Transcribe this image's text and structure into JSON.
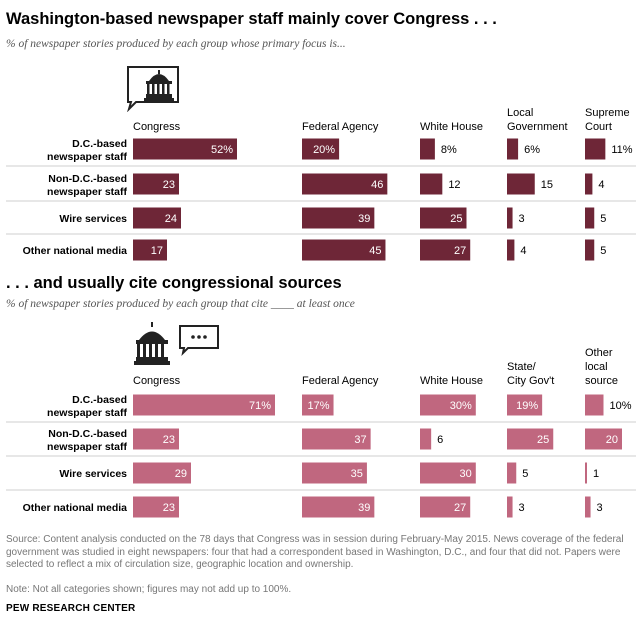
{
  "chart_data": [
    {
      "type": "bar",
      "title": "Washington-based  newspaper staff mainly cover Congress . . .",
      "subtitle": "% of newspaper stories produced by each group whose primary focus is...",
      "rows": [
        "D.C.-based newspaper staff",
        "Non-D.C.-based newspaper staff",
        "Wire services",
        "Other national media"
      ],
      "columns": [
        "Congress",
        "Federal Agency",
        "White House",
        "Local Government",
        "Supreme Court"
      ],
      "series": [
        {
          "name": "D.C.-based newspaper staff",
          "values": [
            52,
            20,
            8,
            6,
            11
          ],
          "labels": [
            "52%",
            "20%",
            "8%",
            "6%",
            "11%"
          ]
        },
        {
          "name": "Non-D.C.-based newspaper staff",
          "values": [
            23,
            46,
            12,
            15,
            4
          ],
          "labels": [
            "23",
            "46",
            "12",
            "15",
            "4"
          ]
        },
        {
          "name": "Wire services",
          "values": [
            24,
            39,
            25,
            3,
            5
          ],
          "labels": [
            "24",
            "39",
            "25",
            "3",
            "5"
          ]
        },
        {
          "name": "Other national media",
          "values": [
            17,
            45,
            27,
            4,
            5
          ],
          "labels": [
            "17",
            "45",
            "27",
            "4",
            "5"
          ]
        }
      ],
      "color": "#6e2637"
    },
    {
      "type": "bar",
      "title": ". . . and usually cite congressional sources",
      "subtitle": "% of newspaper stories produced by each group that cite ____ at least once",
      "rows": [
        "D.C.-based newspaper staff",
        "Non-D.C.-based newspaper staff",
        "Wire services",
        "Other national media"
      ],
      "columns": [
        "Congress",
        "Federal Agency",
        "White House",
        "State/ City Gov't",
        "Other local source"
      ],
      "series": [
        {
          "name": "D.C.-based newspaper staff",
          "values": [
            71,
            17,
            30,
            19,
            10
          ],
          "labels": [
            "71%",
            "17%",
            "30%",
            "19%",
            "10%"
          ]
        },
        {
          "name": "Non-D.C.-based newspaper staff",
          "values": [
            23,
            37,
            6,
            25,
            20
          ],
          "labels": [
            "23",
            "37",
            "6",
            "25",
            "20"
          ]
        },
        {
          "name": "Wire services",
          "values": [
            29,
            35,
            30,
            5,
            1
          ],
          "labels": [
            "29",
            "35",
            "30",
            "5",
            "1"
          ]
        },
        {
          "name": "Other national media",
          "values": [
            23,
            39,
            27,
            3,
            3
          ],
          "labels": [
            "23",
            "39",
            "27",
            "3",
            "3"
          ]
        }
      ],
      "color": "#c0677f"
    }
  ],
  "footer": {
    "source": "Source: Content analysis conducted on the 78 days that Congress was in session during February-May 2015. News coverage of the federal government was studied in eight newspapers: four that had a correspondent based in Washington, D.C., and four that did not. Papers were selected to reflect a mix of circulation size, geographic location and ownership.",
    "note": "Note: Not all categories shown; figures may not add up to 100%.",
    "org": "PEW RESEARCH CENTER"
  },
  "icons": [
    "capitol-speech-icon",
    "capitol-dots-icon"
  ]
}
